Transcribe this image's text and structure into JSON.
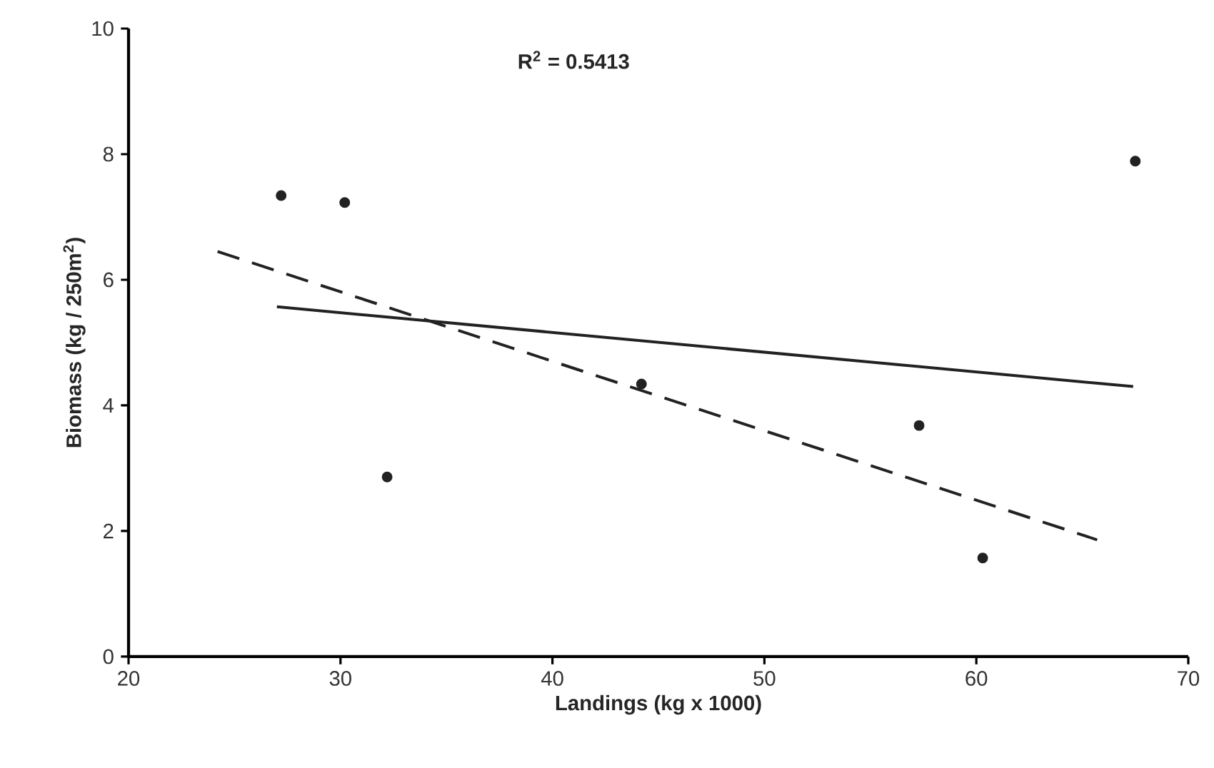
{
  "chart_data": {
    "type": "scatter",
    "xlabel": "Landings (kg x 1000)",
    "ylabel": "Biomass (kg / 250m$^{2}$)",
    "annotations": [
      "R$^{2}$ = 0.5413"
    ],
    "xlim": [
      20,
      70
    ],
    "xticks": [
      20,
      30,
      40,
      50,
      60,
      70
    ],
    "ylim": [
      0,
      10
    ],
    "yticks": [
      0,
      2,
      4,
      6,
      8,
      10
    ],
    "series": [
      {
        "color": "#222222",
        "marker": "circle",
        "x": [
          27.2,
          30.2,
          32.2,
          44.2,
          57.3,
          60.3,
          67.5
        ],
        "values": [
          7.34,
          7.23,
          2.86,
          4.34,
          3.68,
          1.57,
          7.89
        ]
      },
      {
        "type": "line",
        "color": "#222222",
        "marker": "none",
        "line_style": "solid",
        "x": [
          27.0,
          67.4
        ],
        "values": [
          5.57,
          4.3
        ]
      },
      {
        "type": "line",
        "color": "#222222",
        "marker": "none",
        "line_style": "dashed",
        "x": [
          24.2,
          65.7
        ],
        "values": [
          6.45,
          1.86
        ]
      }
    ]
  }
}
